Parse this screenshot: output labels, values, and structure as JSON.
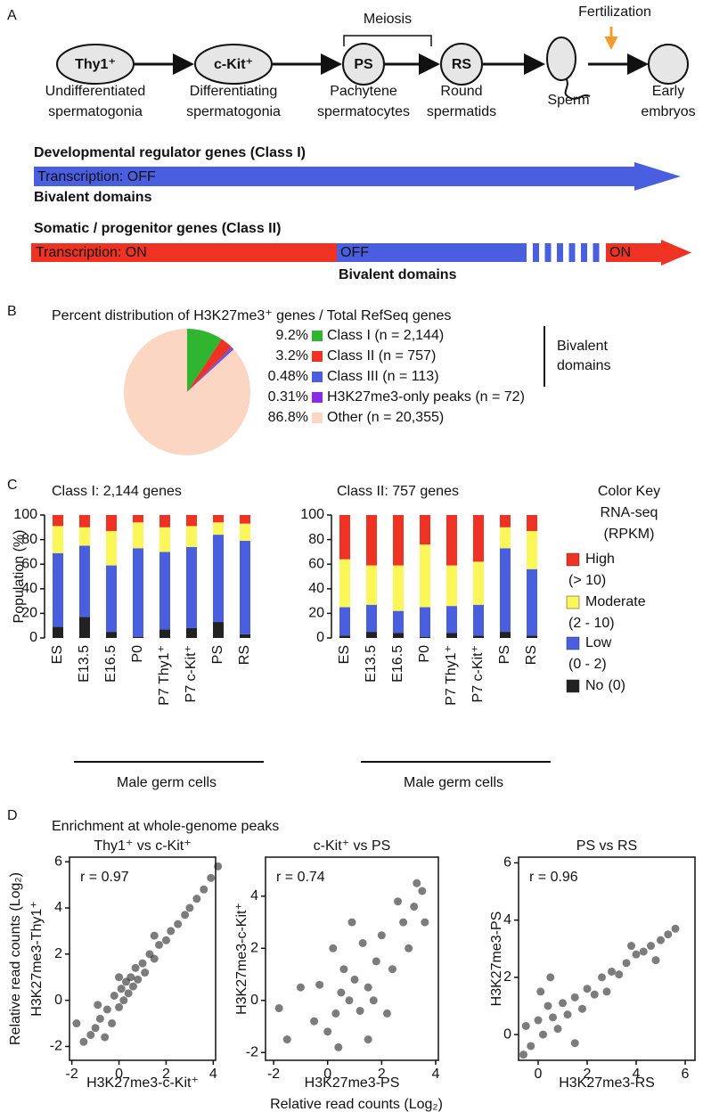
{
  "panel_labels": [
    "A",
    "B",
    "C",
    "D"
  ],
  "diagram": {
    "nodes": [
      {
        "label": "Thy1⁺",
        "caption": [
          "Undifferentiated",
          "spermatogonia"
        ]
      },
      {
        "label": "c-Kit⁺",
        "caption": [
          "Differentiating",
          "spermatogonia"
        ]
      },
      {
        "label": "PS",
        "caption": [
          "Pachytene",
          "spermatocytes"
        ]
      },
      {
        "label": "RS",
        "caption": [
          "Round",
          "spermatids"
        ]
      },
      {
        "caption": [
          "Sperm"
        ]
      },
      {
        "caption": [
          "Early",
          "embryos"
        ]
      }
    ],
    "meiosis": "Meiosis",
    "fertilization": "Fertilization",
    "class1": {
      "title": "Developmental regulator genes (Class I)",
      "band": [
        "Transcription: OFF"
      ],
      "below": "Bivalent domains"
    },
    "class2": {
      "title": "Somatic / progenitor genes (Class II)",
      "band": [
        "Transcription: ON",
        "OFF",
        "ON"
      ],
      "below": "Bivalent domains"
    }
  },
  "chart_data": [
    {
      "type": "pie",
      "title": "Percent distribution of H3K27me3⁺ genes / Total RefSeq genes",
      "categories": [
        "Class I (n = 2,144)",
        "Class II (n = 757)",
        "Class III (n = 113)",
        "H3K27me3-only peaks (n = 72)",
        "Other (n = 20,355)"
      ],
      "values": [
        9.2,
        3.2,
        0.48,
        0.31,
        86.8
      ],
      "value_labels": [
        "9.2%",
        "3.2%",
        "0.48%",
        "0.31%",
        "86.8%"
      ],
      "colors": [
        "#2fb52f",
        "#ee3224",
        "#4a5fe0",
        "#8a2be2",
        "#fbd6c2"
      ],
      "bracket_label": [
        "Bivalent",
        "domains"
      ]
    },
    {
      "type": "bar",
      "stacked": true,
      "title": "Class I: 2,144 genes",
      "y_label": "Population (%)",
      "categories": [
        "ES",
        "E13.5",
        "E16.5",
        "P0",
        "P7 Thy1⁺",
        "P7 c-Kit⁺",
        "PS",
        "RS"
      ],
      "series": [
        {
          "name": "No",
          "range": "(0)",
          "color": "#222222",
          "values": [
            9,
            17,
            5,
            1,
            7,
            8,
            13,
            3
          ]
        },
        {
          "name": "Low",
          "range": "(0 - 2)",
          "color": "#4a5fe0",
          "values": [
            60,
            58,
            54,
            72,
            63,
            66,
            71,
            76
          ]
        },
        {
          "name": "Moderate",
          "range": "(2 - 10)",
          "color": "#fbf65a",
          "values": [
            22,
            15,
            28,
            21,
            20,
            17,
            10,
            14
          ]
        },
        {
          "name": "High",
          "range": "(> 10)",
          "color": "#ee3224",
          "values": [
            9,
            10,
            13,
            6,
            10,
            9,
            6,
            7
          ]
        }
      ],
      "ylim": [
        0,
        100
      ],
      "yticks": [
        0,
        20,
        40,
        60,
        80,
        100
      ],
      "group_label": "Male germ cells"
    },
    {
      "type": "bar",
      "stacked": true,
      "title": "Class II: 757 genes",
      "y_label": "Population (%)",
      "categories": [
        "ES",
        "E13.5",
        "E16.5",
        "P0",
        "P7 Thy1⁺",
        "P7 c-Kit⁺",
        "PS",
        "RS"
      ],
      "series": [
        {
          "color": "#222222",
          "values": [
            2,
            5,
            4,
            1,
            4,
            2,
            5,
            2
          ]
        },
        {
          "color": "#4a5fe0",
          "values": [
            23,
            22,
            18,
            24,
            22,
            25,
            68,
            54
          ]
        },
        {
          "color": "#fbf65a",
          "values": [
            39,
            32,
            37,
            51,
            33,
            35,
            17,
            31
          ]
        },
        {
          "color": "#ee3224",
          "values": [
            36,
            41,
            41,
            24,
            41,
            38,
            10,
            13
          ]
        }
      ],
      "ylim": [
        0,
        100
      ],
      "yticks": [
        0,
        20,
        40,
        60,
        80,
        100
      ],
      "group_label": "Male germ cells"
    },
    {
      "type": "scatter",
      "title": "Thy1⁺ vs c-Kit⁺",
      "annotation": "r = 0.97",
      "x_label": "H3K27me3-c-Kit⁺",
      "y_label": "H3K27me3-Thy1⁺",
      "x": [
        -1.5,
        -1.2,
        -1.0,
        -0.8,
        -0.6,
        -0.5,
        -0.3,
        -0.2,
        0,
        0.1,
        0.2,
        0.3,
        0.4,
        0.5,
        0.6,
        0.7,
        0.8,
        1.0,
        1.1,
        1.3,
        1.5,
        1.7,
        2.0,
        2.2,
        2.5,
        2.8,
        3.0,
        3.3,
        3.6,
        3.9,
        4.2,
        -1.8,
        -0.9,
        0.0,
        1.5
      ],
      "y": [
        -1.8,
        -1.5,
        -1.2,
        -0.8,
        -1.6,
        -0.4,
        -1.0,
        0.2,
        -0.3,
        0.5,
        0.0,
        0.8,
        0.3,
        1.0,
        0.6,
        1.4,
        0.9,
        1.6,
        1.2,
        2.0,
        1.8,
        2.4,
        2.6,
        3.0,
        3.3,
        3.7,
        4.0,
        4.4,
        4.8,
        5.3,
        5.8,
        -1.0,
        -0.2,
        1.0,
        2.8
      ],
      "xlim": [
        -2.1,
        4.1
      ],
      "ylim": [
        -2.6,
        6.2
      ],
      "xticks": [
        -2,
        0,
        2,
        4
      ],
      "yticks": [
        -2,
        0,
        2,
        4,
        6
      ]
    },
    {
      "type": "scatter",
      "title": "c-Kit⁺ vs PS",
      "annotation": "r = 0.74",
      "x_label": "H3K27me3-PS",
      "y_label": "H3K27me3-c-Kit⁺",
      "x": [
        0,
        0.3,
        0.5,
        0.8,
        1.0,
        1.2,
        0.6,
        1.5,
        -0.5,
        -1.0,
        -1.5,
        0.2,
        1.8,
        2.0,
        2.4,
        2.8,
        3.2,
        3.5,
        3.0,
        2.2,
        1.5,
        0.9,
        -0.3,
        1.3,
        3.6,
        2.6,
        0.4,
        1.7,
        -1.8,
        3.3
      ],
      "y": [
        -1.2,
        -0.5,
        0.3,
        0.0,
        0.8,
        -0.4,
        1.2,
        0.5,
        -0.8,
        0.5,
        -1.5,
        2.0,
        1.5,
        2.5,
        1.2,
        3.0,
        3.6,
        4.2,
        2.0,
        -0.5,
        -1.5,
        3.0,
        0.6,
        2.2,
        3.0,
        3.8,
        -1.8,
        0.0,
        -0.3,
        4.5
      ],
      "xlim": [
        -2.3,
        4.1
      ],
      "ylim": [
        -2.3,
        5.5
      ],
      "xticks": [
        -2,
        0,
        2,
        4
      ],
      "yticks": [
        -2,
        0,
        2,
        4
      ]
    },
    {
      "type": "scatter",
      "title": "PS vs RS",
      "annotation": "r = 0.96",
      "x_label": "H3K27me3-RS",
      "y_label": "H3K27me3-PS",
      "x": [
        -0.5,
        -0.3,
        0,
        0.2,
        0.4,
        0.6,
        0.8,
        1.0,
        1.2,
        1.5,
        1.8,
        2.0,
        2.3,
        2.6,
        3.0,
        3.3,
        3.6,
        4.0,
        4.3,
        4.6,
        5.0,
        5.3,
        5.6,
        -0.6,
        0.5,
        1.5,
        2.8,
        4.8,
        0.1,
        3.8
      ],
      "y": [
        0.3,
        -0.4,
        0.5,
        0.0,
        1.0,
        0.6,
        0.2,
        1.1,
        0.7,
        1.3,
        0.9,
        1.6,
        1.4,
        2.0,
        2.2,
        2.1,
        2.5,
        2.8,
        2.9,
        3.1,
        3.3,
        3.5,
        3.7,
        -0.7,
        2.0,
        -0.3,
        1.5,
        2.6,
        1.5,
        3.1
      ],
      "xlim": [
        -0.8,
        6.4
      ],
      "ylim": [
        -0.9,
        6.2
      ],
      "xticks": [
        0,
        2,
        4,
        6
      ],
      "yticks": [
        0,
        2,
        4,
        6
      ]
    }
  ],
  "color_key_title": [
    "Color Key",
    "RNA-seq",
    "(RPKM)"
  ],
  "panel_d": {
    "title": "Enrichment at whole-genome peaks",
    "common_label": "Relative read counts (Log₂)"
  }
}
